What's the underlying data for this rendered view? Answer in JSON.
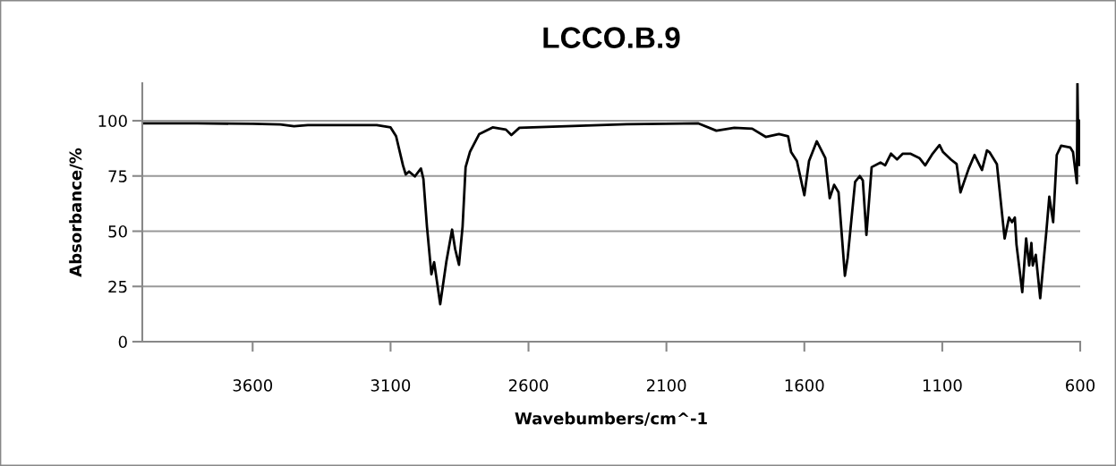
{
  "chart_data": {
    "type": "line",
    "title": "LCCO.B.9",
    "xlabel": "Wavebumbers/cm^-1",
    "ylabel": "Absorbance/%",
    "xlim": [
      4000,
      600
    ],
    "xticks": [
      3600,
      3100,
      2600,
      2100,
      1600,
      1100,
      600
    ],
    "ylim": [
      0,
      117
    ],
    "yticks": [
      0,
      25,
      50,
      75,
      100
    ],
    "grid": "y",
    "legend": false,
    "marker": "none",
    "line_style": "solid",
    "series": [
      {
        "color": "#000000",
        "x": [
          4000,
          3800,
          3600,
          3500,
          3450,
          3400,
          3300,
          3150,
          3100,
          3080,
          3055,
          3045,
          3033,
          3012,
          2990,
          2981,
          2968,
          2952,
          2942,
          2920,
          2898,
          2877,
          2866,
          2852,
          2839,
          2828,
          2812,
          2779,
          2730,
          2682,
          2662,
          2633,
          2244,
          1984,
          1919,
          1854,
          1789,
          1740,
          1692,
          1659,
          1648,
          1627,
          1600,
          1583,
          1555,
          1524,
          1508,
          1492,
          1476,
          1453,
          1443,
          1416,
          1399,
          1388,
          1375,
          1356,
          1324,
          1307,
          1286,
          1264,
          1243,
          1216,
          1183,
          1162,
          1135,
          1110,
          1097,
          1069,
          1048,
          1034,
          1021,
          1004,
          983,
          956,
          938,
          929,
          902,
          874,
          858,
          847,
          837,
          831,
          810,
          796,
          785,
          777,
          772,
          761,
          745,
          723,
          712,
          698,
          685,
          669,
          636,
          626,
          612,
          610,
          606,
          603,
          600
        ],
        "values": [
          98.8,
          98.8,
          98.6,
          98.3,
          97.5,
          98,
          98,
          98,
          97,
          93,
          79.8,
          75.7,
          77,
          74.8,
          78.4,
          73.7,
          52,
          30.5,
          36,
          17,
          36,
          50.7,
          42,
          34.8,
          52,
          79,
          86,
          93.9,
          97,
          96,
          93.5,
          96.8,
          98.4,
          98.8,
          95.5,
          96.8,
          96.4,
          92.7,
          94,
          93,
          85.8,
          81.8,
          66.3,
          81.8,
          90.7,
          83.1,
          64.9,
          71,
          67.6,
          29.8,
          37.9,
          72.3,
          75,
          73,
          48.3,
          79,
          81.1,
          79.8,
          85.1,
          82.5,
          85.1,
          85.1,
          83.1,
          79.8,
          85.1,
          89,
          85.8,
          82.5,
          80.4,
          67.6,
          72.3,
          78.4,
          84.5,
          77.7,
          86.6,
          85.8,
          80.4,
          46.7,
          56.2,
          54.1,
          56.2,
          44,
          22.4,
          46.7,
          34.5,
          44.7,
          34.5,
          39.3,
          19.7,
          49.4,
          65.6,
          54.1,
          84.5,
          88.7,
          87.9,
          85.8,
          71.7,
          117,
          80,
          100,
          80
        ]
      }
    ]
  }
}
